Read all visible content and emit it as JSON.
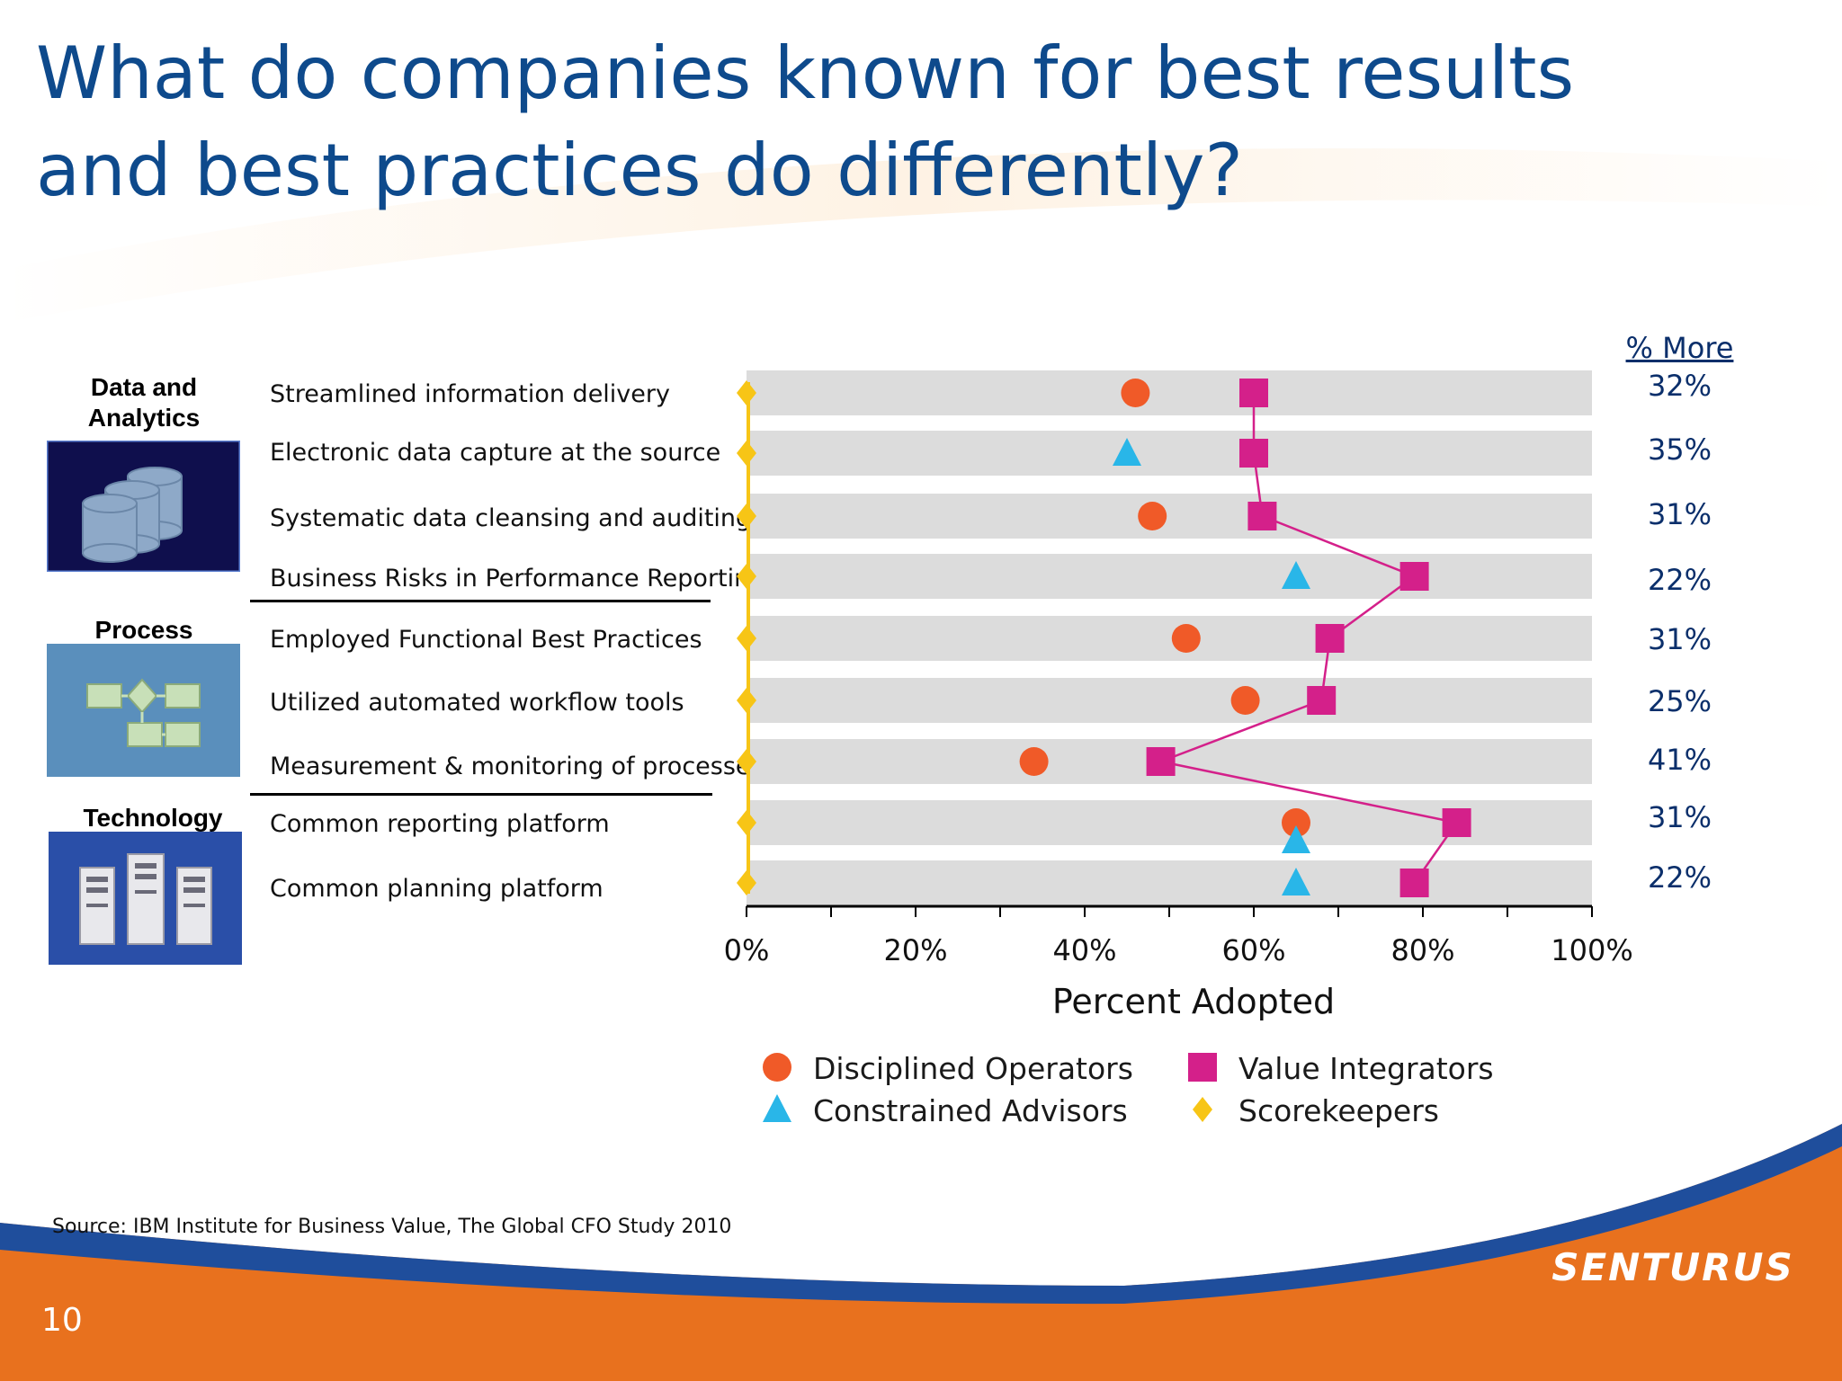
{
  "slide": {
    "title": "What do companies known for best results and best practices do differently?",
    "page_number": "10",
    "source": "Source: IBM Institute for Business Value, The Global CFO Study 2010",
    "brand": "SENTURUS"
  },
  "categories": [
    {
      "label": "Data and Analytics",
      "icon": "database-icon"
    },
    {
      "label": "Process",
      "icon": "workflow-icon"
    },
    {
      "label": "Technology",
      "icon": "servers-icon"
    }
  ],
  "more_header": "% More",
  "chart_data": {
    "type": "scatter",
    "categories": [
      "Streamlined information delivery",
      "Electronic data capture at the source",
      "Systematic data cleansing and auditing",
      "Business Risks in Performance Reporting",
      "Employed Functional Best Practices",
      "Utilized automated workflow tools",
      "Measurement & monitoring of processes",
      "Common reporting platform",
      "Common planning platform"
    ],
    "series": [
      {
        "name": "Disciplined Operators",
        "marker": "circle",
        "color": "#f05a28",
        "values": [
          46,
          null,
          48,
          null,
          52,
          59,
          34,
          65,
          null
        ]
      },
      {
        "name": "Constrained Advisors",
        "marker": "triangle",
        "color": "#29b6e8",
        "values": [
          null,
          45,
          null,
          65,
          null,
          null,
          null,
          65,
          65
        ]
      },
      {
        "name": "Value Integrators",
        "marker": "square",
        "color": "#d4208a",
        "values": [
          60,
          60,
          61,
          79,
          69,
          68,
          49,
          84,
          79
        ]
      },
      {
        "name": "Scorekeepers",
        "marker": "diamond",
        "color": "#f7c516",
        "values": [
          0,
          0,
          0,
          0,
          0,
          0,
          0,
          0,
          0
        ]
      }
    ],
    "pct_more": [
      "32%",
      "35%",
      "31%",
      "22%",
      "31%",
      "25%",
      "41%",
      "31%",
      "22%"
    ],
    "xlabel": "Percent Adopted",
    "xlim": [
      0,
      100
    ],
    "x_ticks": [
      "0%",
      "20%",
      "40%",
      "60%",
      "80%",
      "100%"
    ],
    "connected_series": "Value Integrators",
    "band_color": "#dcdcdc",
    "legend_order": [
      "Disciplined Operators",
      "Value Integrators",
      "Constrained Advisors",
      "Scorekeepers"
    ]
  }
}
